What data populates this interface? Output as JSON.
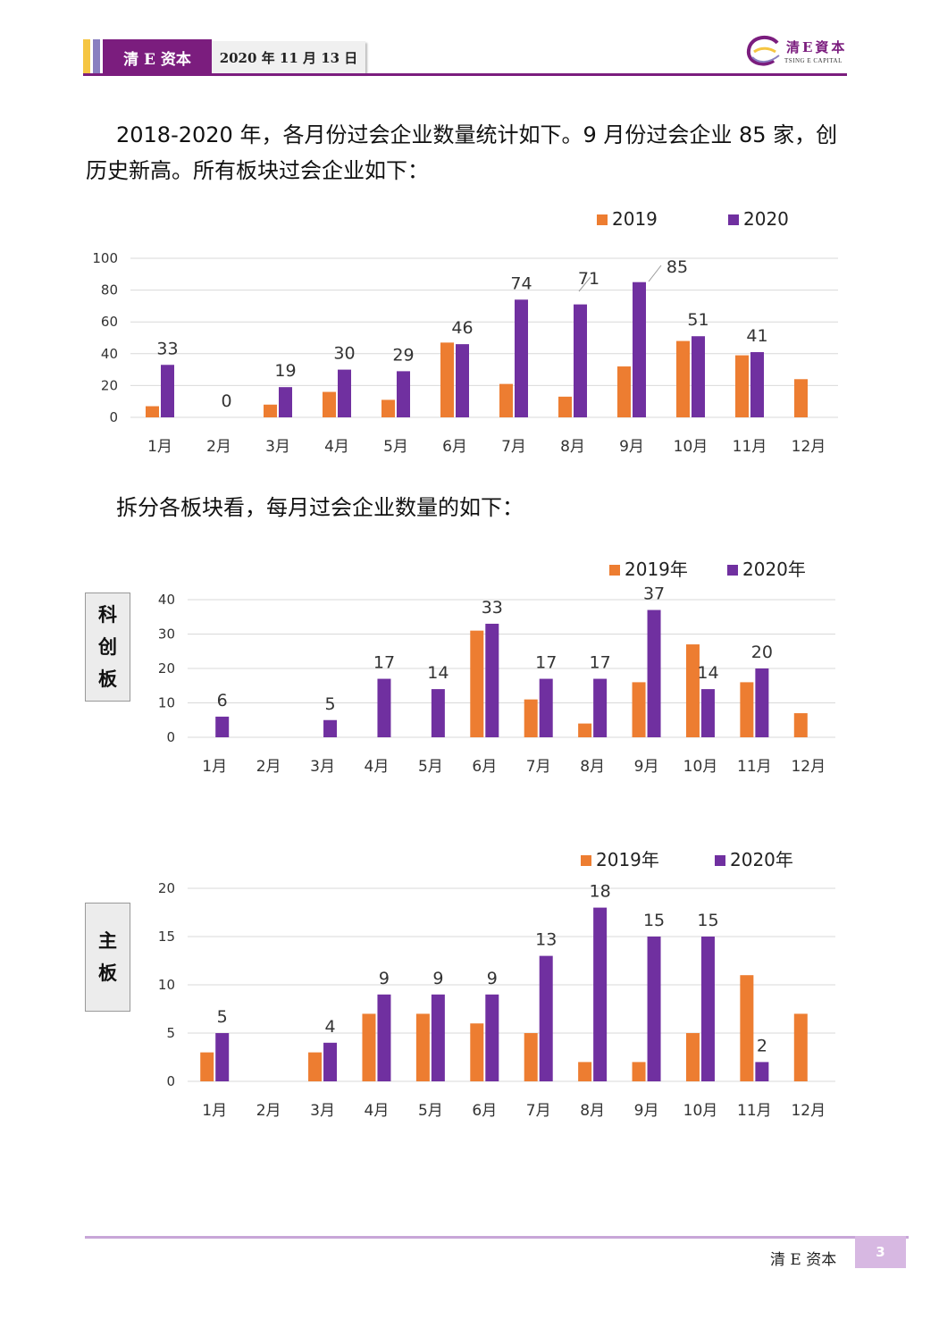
{
  "header": {
    "brand": "清 E 资本",
    "date": "2020 年 11 月 13 日",
    "logo_cn": "清E資本",
    "logo_en": "TSING E CAPITAL",
    "colors": {
      "brand": "#7b1d7e",
      "accent_yellow": "#f5c542",
      "accent_lilac": "#8a7fc0"
    }
  },
  "body": {
    "p1": "2018-2020 年，各月份过会企业数量统计如下。9 月份过会企业 85 家，创历史新高。所有板块过会企业如下：",
    "p2": "拆分各板块看，每月过会企业数量的如下："
  },
  "side_labels": {
    "kcb": [
      "科",
      "创",
      "板"
    ],
    "zb": [
      "主",
      "板"
    ]
  },
  "chart_data": [
    {
      "type": "bar",
      "categories": [
        "1月",
        "2月",
        "3月",
        "4月",
        "5月",
        "6月",
        "7月",
        "8月",
        "9月",
        "10月",
        "11月",
        "12月"
      ],
      "series": [
        {
          "name": "2019",
          "color": "#ed7d31",
          "values": [
            7,
            0,
            8,
            16,
            11,
            47,
            21,
            13,
            32,
            48,
            39,
            24
          ]
        },
        {
          "name": "2020",
          "color": "#7030a0",
          "values": [
            33,
            0,
            19,
            30,
            29,
            46,
            74,
            71,
            85,
            51,
            41,
            null
          ]
        }
      ],
      "data_labels": [
        "33",
        "0",
        "19",
        "30",
        "29",
        "46",
        "74",
        "71",
        "85",
        "51",
        "41",
        ""
      ],
      "ylim": [
        0,
        100
      ],
      "yticks": [
        0,
        20,
        40,
        60,
        80,
        100
      ],
      "grid": true,
      "legend": "top-right"
    },
    {
      "type": "bar",
      "categories": [
        "1月",
        "2月",
        "3月",
        "4月",
        "5月",
        "6月",
        "7月",
        "8月",
        "9月",
        "10月",
        "11月",
        "12月"
      ],
      "series": [
        {
          "name": "2019年",
          "color": "#ed7d31",
          "values": [
            0,
            0,
            0,
            0,
            0,
            31,
            11,
            4,
            16,
            27,
            16,
            7
          ]
        },
        {
          "name": "2020年",
          "color": "#7030a0",
          "values": [
            6,
            0,
            5,
            17,
            14,
            33,
            17,
            17,
            37,
            14,
            20,
            null
          ]
        }
      ],
      "data_labels": [
        "6",
        "",
        "5",
        "17",
        "14",
        "33",
        "17",
        "17",
        "37",
        "14",
        "20",
        ""
      ],
      "ylim": [
        0,
        40
      ],
      "yticks": [
        0,
        10,
        20,
        30,
        40
      ],
      "grid": true,
      "legend": "top-right"
    },
    {
      "type": "bar",
      "categories": [
        "1月",
        "2月",
        "3月",
        "4月",
        "5月",
        "6月",
        "7月",
        "8月",
        "9月",
        "10月",
        "11月",
        "12月"
      ],
      "series": [
        {
          "name": "2019年",
          "color": "#ed7d31",
          "values": [
            3,
            0,
            3,
            7,
            7,
            6,
            5,
            2,
            2,
            5,
            11,
            7
          ]
        },
        {
          "name": "2020年",
          "color": "#7030a0",
          "values": [
            5,
            0,
            4,
            9,
            9,
            9,
            13,
            18,
            15,
            15,
            2,
            null
          ]
        }
      ],
      "data_labels": [
        "5",
        "",
        "4",
        "9",
        "9",
        "9",
        "13",
        "18",
        "15",
        "15",
        "2",
        ""
      ],
      "ylim": [
        0,
        20
      ],
      "yticks": [
        0,
        5,
        10,
        15,
        20
      ],
      "grid": true,
      "legend": "top-right"
    }
  ],
  "footer": {
    "name": "清 E 资本",
    "page": "3"
  }
}
